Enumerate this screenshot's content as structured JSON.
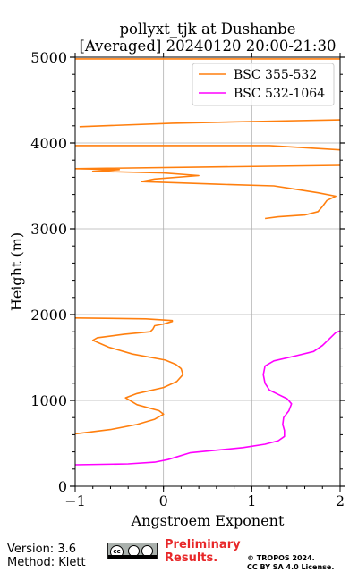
{
  "chart_data": {
    "type": "line",
    "title": "pollyxt_tjk at Dushanbe",
    "subtitle": "[Averaged] 20240120 20:00-21:30",
    "xlabel": "Angstroem Exponent",
    "ylabel": "Height (m)",
    "xlim": [
      -1,
      2
    ],
    "ylim": [
      0,
      5000
    ],
    "x_ticks": [
      -1,
      0,
      1,
      2
    ],
    "y_ticks": [
      0,
      1000,
      2000,
      3000,
      4000,
      5000
    ],
    "grid": true,
    "legend_position": "top-right",
    "series": [
      {
        "name": "BSC 355-532",
        "color": "#ff7f0e",
        "segments": [
          [
            [
              -1.0,
              610
            ],
            [
              -0.6,
              660
            ],
            [
              -0.3,
              720
            ],
            [
              -0.1,
              780
            ],
            [
              0.0,
              840
            ],
            [
              -0.05,
              880
            ],
            [
              -0.3,
              950
            ],
            [
              -0.43,
              1030
            ],
            [
              -0.3,
              1080
            ],
            [
              0.0,
              1150
            ],
            [
              0.15,
              1220
            ],
            [
              0.22,
              1300
            ],
            [
              0.2,
              1370
            ],
            [
              0.14,
              1420
            ],
            [
              0.02,
              1470
            ],
            [
              -0.35,
              1540
            ],
            [
              -0.62,
              1620
            ],
            [
              -0.8,
              1700
            ],
            [
              -0.75,
              1730
            ],
            [
              -0.45,
              1770
            ],
            [
              -0.15,
              1800
            ],
            [
              -0.12,
              1830
            ],
            [
              -0.1,
              1870
            ],
            [
              0.0,
              1890
            ],
            [
              0.1,
              1920
            ],
            [
              0.1,
              1930
            ],
            [
              -0.2,
              1950
            ],
            [
              -1.0,
              1960
            ]
          ],
          [
            [
              1.15,
              3120
            ],
            [
              1.3,
              3140
            ],
            [
              1.6,
              3160
            ],
            [
              1.75,
              3200
            ],
            [
              1.8,
              3260
            ],
            [
              1.85,
              3330
            ],
            [
              1.95,
              3380
            ],
            [
              1.75,
              3420
            ],
            [
              1.5,
              3460
            ],
            [
              1.25,
              3500
            ],
            [
              0.6,
              3520
            ],
            [
              -0.25,
              3550
            ],
            [
              -0.1,
              3580
            ],
            [
              0.4,
              3620
            ],
            [
              0.0,
              3650
            ],
            [
              -0.8,
              3670
            ],
            [
              -0.5,
              3690
            ],
            [
              -1.0,
              3700
            ],
            [
              2.0,
              3740
            ]
          ],
          [
            [
              -1.0,
              3970
            ],
            [
              1.2,
              3970
            ],
            [
              2.0,
              3920
            ]
          ],
          [
            [
              -0.95,
              4190
            ],
            [
              0.1,
              4230
            ],
            [
              1.0,
              4250
            ],
            [
              2.0,
              4270
            ]
          ],
          [
            [
              -1.0,
              4980
            ],
            [
              2.0,
              4980
            ]
          ]
        ]
      },
      {
        "name": "BSC 532-1064",
        "color": "#ff00ff",
        "segments": [
          [
            [
              -1.0,
              250
            ],
            [
              -0.4,
              260
            ],
            [
              -0.1,
              280
            ],
            [
              0.05,
              310
            ],
            [
              0.3,
              390
            ],
            [
              0.6,
              420
            ],
            [
              0.9,
              450
            ],
            [
              1.15,
              490
            ],
            [
              1.3,
              530
            ],
            [
              1.37,
              580
            ],
            [
              1.37,
              650
            ],
            [
              1.35,
              720
            ],
            [
              1.36,
              800
            ],
            [
              1.42,
              880
            ],
            [
              1.45,
              960
            ],
            [
              1.4,
              1020
            ],
            [
              1.3,
              1070
            ],
            [
              1.2,
              1120
            ],
            [
              1.15,
              1200
            ],
            [
              1.13,
              1300
            ],
            [
              1.15,
              1400
            ],
            [
              1.25,
              1460
            ],
            [
              1.5,
              1520
            ],
            [
              1.7,
              1570
            ],
            [
              1.8,
              1640
            ],
            [
              1.88,
              1720
            ],
            [
              1.95,
              1790
            ],
            [
              2.0,
              1810
            ]
          ]
        ]
      }
    ]
  },
  "footer": {
    "version": "Version: 3.6",
    "method": "Method: Klett",
    "badge": "cc",
    "preliminary": "Preliminary",
    "results": "Results.",
    "copyright_line1": "© TROPOS 2024.",
    "copyright_line2": "CC BY SA 4.0 License."
  }
}
